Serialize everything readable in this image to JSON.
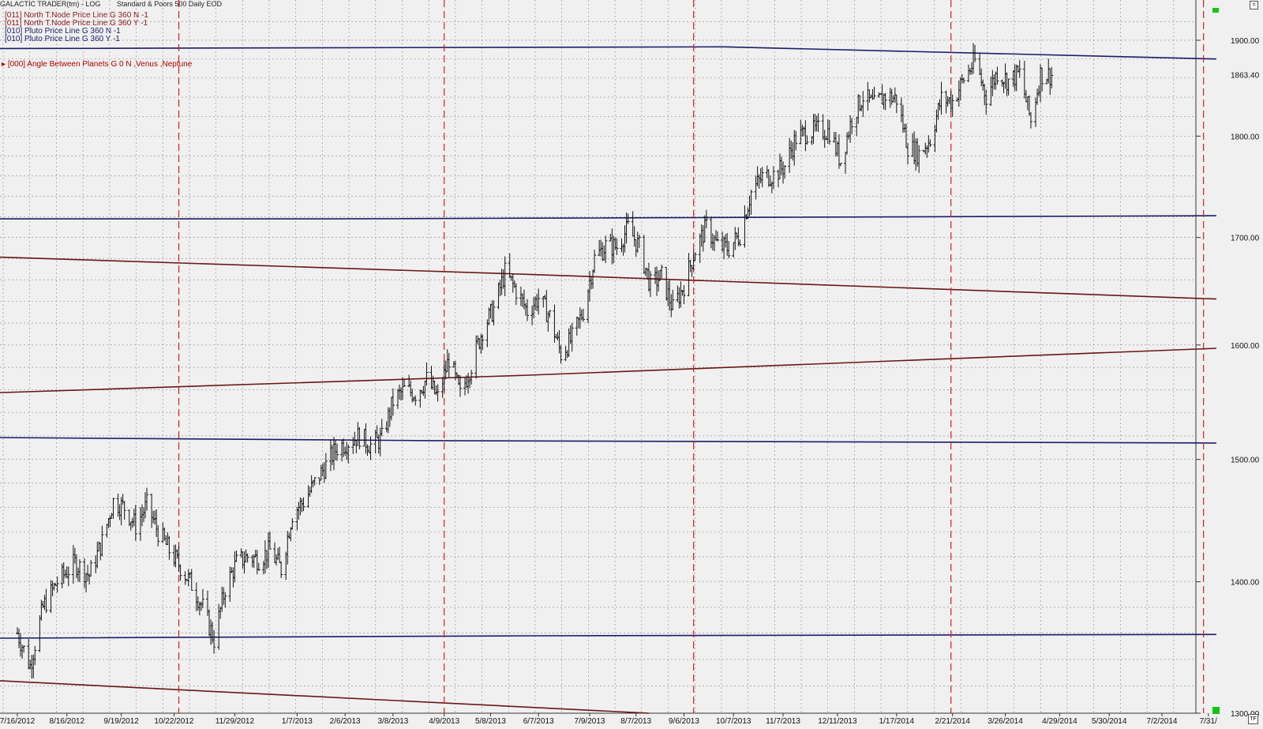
{
  "header": {
    "app_title": "GALACTIC TRADER(tm) - LOG",
    "instrument": "Standard & Poors 500 Daily EOD"
  },
  "legend": [
    {
      "label": "[011] North T.Node Price Line G 360 N -1",
      "color": "#8b1a1a"
    },
    {
      "label": "[011] North T.Node Price Line G 360 Y -1",
      "color": "#8b1a1a"
    },
    {
      "label": "[010] Pluto Price Line G 360 N -1",
      "color": "#1c1c6b"
    },
    {
      "label": "[010] Pluto Price Line G 360 Y -1",
      "color": "#1c1c6b"
    }
  ],
  "annotation": "[000] Angle Between Planets G 0 N ,Venus ,Neptune",
  "buttons": {
    "top_right": "=",
    "bottom_right": "TF"
  },
  "chart_data": {
    "type": "ohlc",
    "title": "",
    "xlabel": "",
    "ylabel": "",
    "y_scale": "log",
    "ylim": [
      1300,
      1935
    ],
    "grid": true,
    "x_tick_labels": [
      "7/16/2012",
      "8/16/2012",
      "9/19/2012",
      "10/22/2012",
      "11/29/2012",
      "1/7/2013",
      "2/6/2013",
      "3/8/2013",
      "4/9/2013",
      "5/8/2013",
      "6/7/2013",
      "7/9/2013",
      "8/7/2013",
      "9/6/2013",
      "10/7/2013",
      "11/7/2013",
      "12/11/2013",
      "1/17/2014",
      "2/21/2014",
      "3/26/2014",
      "4/29/2014",
      "5/30/2014",
      "7/2/2014",
      "7/31/"
    ],
    "y_tick_labels": [
      1300,
      1400,
      1500,
      1600,
      1700,
      1800,
      1900
    ],
    "last_price_label": "1863.40",
    "closes": [
      {
        "date": "2012-07-16",
        "close": 1360
      },
      {
        "date": "2012-07-24",
        "close": 1335
      },
      {
        "date": "2012-08-01",
        "close": 1380
      },
      {
        "date": "2012-08-10",
        "close": 1400
      },
      {
        "date": "2012-08-21",
        "close": 1415
      },
      {
        "date": "2012-08-30",
        "close": 1405
      },
      {
        "date": "2012-09-07",
        "close": 1432
      },
      {
        "date": "2012-09-14",
        "close": 1465
      },
      {
        "date": "2012-09-21",
        "close": 1460
      },
      {
        "date": "2012-09-28",
        "close": 1445
      },
      {
        "date": "2012-10-05",
        "close": 1462
      },
      {
        "date": "2012-10-12",
        "close": 1440
      },
      {
        "date": "2012-10-19",
        "close": 1425
      },
      {
        "date": "2012-10-26",
        "close": 1412
      },
      {
        "date": "2012-11-02",
        "close": 1398
      },
      {
        "date": "2012-11-09",
        "close": 1380
      },
      {
        "date": "2012-11-16",
        "close": 1355
      },
      {
        "date": "2012-11-23",
        "close": 1395
      },
      {
        "date": "2012-11-30",
        "close": 1415
      },
      {
        "date": "2012-12-07",
        "close": 1420
      },
      {
        "date": "2012-12-14",
        "close": 1418
      },
      {
        "date": "2012-12-21",
        "close": 1425
      },
      {
        "date": "2012-12-28",
        "close": 1410
      },
      {
        "date": "2013-01-04",
        "close": 1455
      },
      {
        "date": "2013-01-11",
        "close": 1465
      },
      {
        "date": "2013-01-18",
        "close": 1480
      },
      {
        "date": "2013-01-25",
        "close": 1495
      },
      {
        "date": "2013-02-01",
        "close": 1510
      },
      {
        "date": "2013-02-08",
        "close": 1515
      },
      {
        "date": "2013-02-15",
        "close": 1520
      },
      {
        "date": "2013-02-22",
        "close": 1512
      },
      {
        "date": "2013-03-01",
        "close": 1518
      },
      {
        "date": "2013-03-08",
        "close": 1550
      },
      {
        "date": "2013-03-15",
        "close": 1560
      },
      {
        "date": "2013-03-22",
        "close": 1557
      },
      {
        "date": "2013-03-29",
        "close": 1569
      },
      {
        "date": "2013-04-05",
        "close": 1553
      },
      {
        "date": "2013-04-12",
        "close": 1588
      },
      {
        "date": "2013-04-19",
        "close": 1555
      },
      {
        "date": "2013-04-26",
        "close": 1582
      },
      {
        "date": "2013-05-03",
        "close": 1614
      },
      {
        "date": "2013-05-10",
        "close": 1633
      },
      {
        "date": "2013-05-17",
        "close": 1667
      },
      {
        "date": "2013-05-24",
        "close": 1650
      },
      {
        "date": "2013-05-31",
        "close": 1631
      },
      {
        "date": "2013-06-07",
        "close": 1643
      },
      {
        "date": "2013-06-14",
        "close": 1626
      },
      {
        "date": "2013-06-21",
        "close": 1592
      },
      {
        "date": "2013-06-28",
        "close": 1606
      },
      {
        "date": "2013-07-05",
        "close": 1631
      },
      {
        "date": "2013-07-12",
        "close": 1680
      },
      {
        "date": "2013-07-19",
        "close": 1692
      },
      {
        "date": "2013-07-26",
        "close": 1691
      },
      {
        "date": "2013-08-02",
        "close": 1709
      },
      {
        "date": "2013-08-09",
        "close": 1691
      },
      {
        "date": "2013-08-16",
        "close": 1655
      },
      {
        "date": "2013-08-23",
        "close": 1663
      },
      {
        "date": "2013-08-30",
        "close": 1633
      },
      {
        "date": "2013-09-06",
        "close": 1655
      },
      {
        "date": "2013-09-13",
        "close": 1688
      },
      {
        "date": "2013-09-20",
        "close": 1710
      },
      {
        "date": "2013-09-27",
        "close": 1692
      },
      {
        "date": "2013-10-04",
        "close": 1690
      },
      {
        "date": "2013-10-11",
        "close": 1703
      },
      {
        "date": "2013-10-18",
        "close": 1744
      },
      {
        "date": "2013-10-25",
        "close": 1759
      },
      {
        "date": "2013-11-01",
        "close": 1761
      },
      {
        "date": "2013-11-08",
        "close": 1770
      },
      {
        "date": "2013-11-15",
        "close": 1798
      },
      {
        "date": "2013-11-22",
        "close": 1804
      },
      {
        "date": "2013-11-29",
        "close": 1806
      },
      {
        "date": "2013-12-06",
        "close": 1805
      },
      {
        "date": "2013-12-13",
        "close": 1775
      },
      {
        "date": "2013-12-20",
        "close": 1818
      },
      {
        "date": "2013-12-27",
        "close": 1841
      },
      {
        "date": "2014-01-03",
        "close": 1831
      },
      {
        "date": "2014-01-10",
        "close": 1842
      },
      {
        "date": "2014-01-17",
        "close": 1838
      },
      {
        "date": "2014-01-24",
        "close": 1790
      },
      {
        "date": "2014-01-31",
        "close": 1782
      },
      {
        "date": "2014-02-07",
        "close": 1797
      },
      {
        "date": "2014-02-14",
        "close": 1838
      },
      {
        "date": "2014-02-21",
        "close": 1836
      },
      {
        "date": "2014-02-28",
        "close": 1859
      },
      {
        "date": "2014-03-07",
        "close": 1878
      },
      {
        "date": "2014-03-14",
        "close": 1841
      },
      {
        "date": "2014-03-21",
        "close": 1866
      },
      {
        "date": "2014-03-28",
        "close": 1857
      },
      {
        "date": "2014-04-04",
        "close": 1865
      },
      {
        "date": "2014-04-11",
        "close": 1815
      },
      {
        "date": "2014-04-17",
        "close": 1864
      },
      {
        "date": "2014-04-25",
        "close": 1863
      }
    ],
    "vertical_markers_dates": [
      "2012-10-25",
      "2013-04-09",
      "2013-09-12",
      "2014-02-20",
      "2014-07-28"
    ],
    "planetary_lines": [
      {
        "name": "pluto-1",
        "color": "#1c1c6b",
        "points": [
          [
            "2012-06-01",
            1891
          ],
          [
            "2013-10-01",
            1893
          ],
          [
            "2014-08-05",
            1880
          ]
        ]
      },
      {
        "name": "pluto-2",
        "color": "#1c1c6b",
        "points": [
          [
            "2012-06-01",
            1718
          ],
          [
            "2013-02-01",
            1718
          ],
          [
            "2014-08-05",
            1721
          ]
        ]
      },
      {
        "name": "pluto-3",
        "color": "#1c1c6b",
        "points": [
          [
            "2012-06-01",
            1519
          ],
          [
            "2013-04-01",
            1516
          ],
          [
            "2014-08-05",
            1514
          ]
        ]
      },
      {
        "name": "pluto-4",
        "color": "#1c1c6b",
        "points": [
          [
            "2012-06-01",
            1356
          ],
          [
            "2013-06-01",
            1358
          ],
          [
            "2014-08-05",
            1359
          ]
        ]
      },
      {
        "name": "node-1",
        "color": "#6b1515",
        "points": [
          [
            "2012-06-01",
            1683
          ],
          [
            "2013-06-01",
            1665
          ],
          [
            "2014-08-05",
            1642
          ]
        ]
      },
      {
        "name": "node-2",
        "color": "#6b1515",
        "points": [
          [
            "2012-06-01",
            1556
          ],
          [
            "2013-06-01",
            1573
          ],
          [
            "2014-08-05",
            1597
          ]
        ]
      },
      {
        "name": "node-3",
        "color": "#6b1515",
        "points": [
          [
            "2012-06-01",
            1326
          ],
          [
            "2013-08-15",
            1300
          ]
        ]
      }
    ]
  }
}
